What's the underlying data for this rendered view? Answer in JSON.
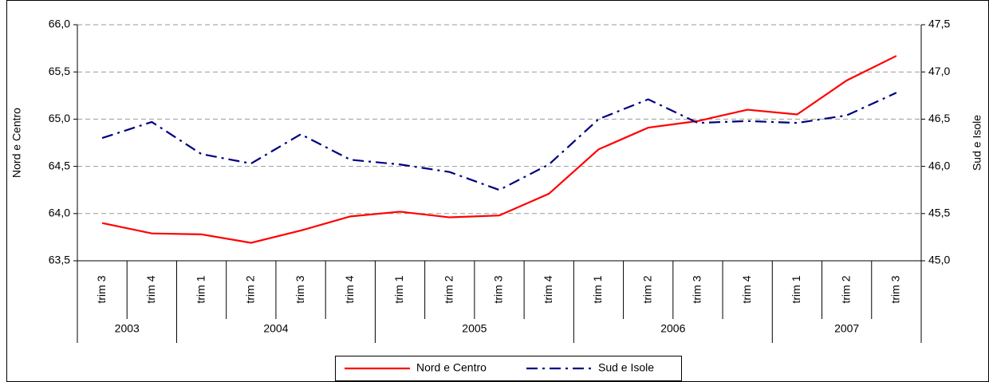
{
  "chart_data": {
    "type": "line",
    "groups": [
      {
        "label": "2003",
        "categories": [
          "trim 3",
          "trim 4"
        ]
      },
      {
        "label": "2004",
        "categories": [
          "trim 1",
          "trim 2",
          "trim 3",
          "trim 4"
        ]
      },
      {
        "label": "2005",
        "categories": [
          "trim 1",
          "trim 2",
          "trim 3",
          "trim 4"
        ]
      },
      {
        "label": "2006",
        "categories": [
          "trim 1",
          "trim 2",
          "trim 3",
          "trim 4"
        ]
      },
      {
        "label": "2007",
        "categories": [
          "trim 1",
          "trim 2",
          "trim 3"
        ]
      }
    ],
    "series": [
      {
        "name": "Nord e Centro",
        "color": "#ff0000",
        "axis": "y",
        "dash": "solid",
        "values": [
          63.9,
          63.79,
          63.78,
          63.69,
          63.82,
          63.97,
          64.02,
          63.96,
          63.98,
          64.21,
          64.68,
          64.91,
          64.98,
          65.1,
          65.05,
          65.41,
          65.67
        ]
      },
      {
        "name": "Sud e Isole",
        "color": "#000080",
        "axis": "y2",
        "dash": "dashdot",
        "values": [
          46.3,
          46.47,
          46.13,
          46.03,
          46.34,
          46.07,
          46.02,
          45.94,
          45.75,
          46.02,
          46.5,
          46.71,
          46.46,
          46.48,
          46.46,
          46.54,
          46.78
        ]
      }
    ],
    "ylabel": "Nord e Centro",
    "y2label": "Sud e Isole",
    "ylim": [
      63.5,
      66.0
    ],
    "yticks": [
      {
        "value": 63.5,
        "label": "63,5"
      },
      {
        "value": 64.0,
        "label": "64,0"
      },
      {
        "value": 64.5,
        "label": "64,5"
      },
      {
        "value": 65.0,
        "label": "65,0"
      },
      {
        "value": 65.5,
        "label": "65,5"
      },
      {
        "value": 66.0,
        "label": "66,0"
      }
    ],
    "y2lim": [
      45.0,
      47.5
    ],
    "y2ticks": [
      {
        "value": 45.0,
        "label": "45,0"
      },
      {
        "value": 45.5,
        "label": "45,5"
      },
      {
        "value": 46.0,
        "label": "46,0"
      },
      {
        "value": 46.5,
        "label": "46,5"
      },
      {
        "value": 47.0,
        "label": "47,0"
      },
      {
        "value": 47.5,
        "label": "47,5"
      }
    ],
    "grid": true,
    "legend": "bottom"
  }
}
